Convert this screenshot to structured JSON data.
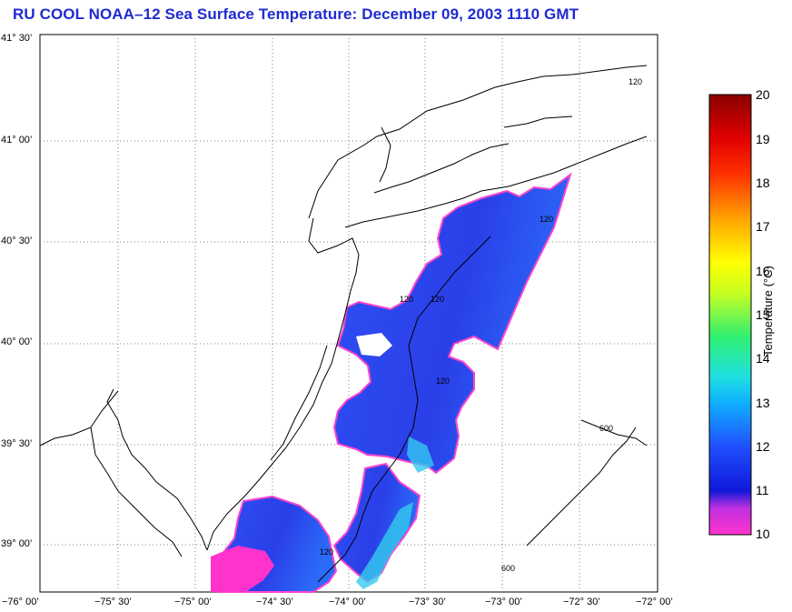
{
  "title": "RU COOL  NOAA–12  Sea Surface Temperature:  December 09, 2003 1110 GMT",
  "lat_labels": [
    "41° 30’",
    "41° 00’",
    "40° 30’",
    "40° 00’",
    "39° 30’",
    "39° 00’"
  ],
  "lon_labels": [
    "−76° 00’",
    "−75° 30’",
    "−75° 00’",
    "−74° 30’",
    "−74° 00’",
    "−73° 30’",
    "−73° 00’",
    "−72° 30’",
    "−72° 00’"
  ],
  "isobath_labels": [
    "120",
    "120",
    "120",
    "120",
    "120",
    "120",
    "600",
    "600"
  ],
  "colorbar": {
    "ticks": [
      "20",
      "19",
      "18",
      "17",
      "16",
      "15",
      "14",
      "13",
      "12",
      "11",
      "10"
    ],
    "label": "Temperature (°C)",
    "min": 10,
    "max": 20,
    "colors": [
      "#ff33cc",
      "#7a3fe0",
      "#1020e0",
      "#2060ff",
      "#10b0ff",
      "#20e0e0",
      "#30f080",
      "#a0ff20",
      "#ffff00",
      "#ffa000",
      "#ff3000",
      "#e00000",
      "#900000"
    ]
  }
}
